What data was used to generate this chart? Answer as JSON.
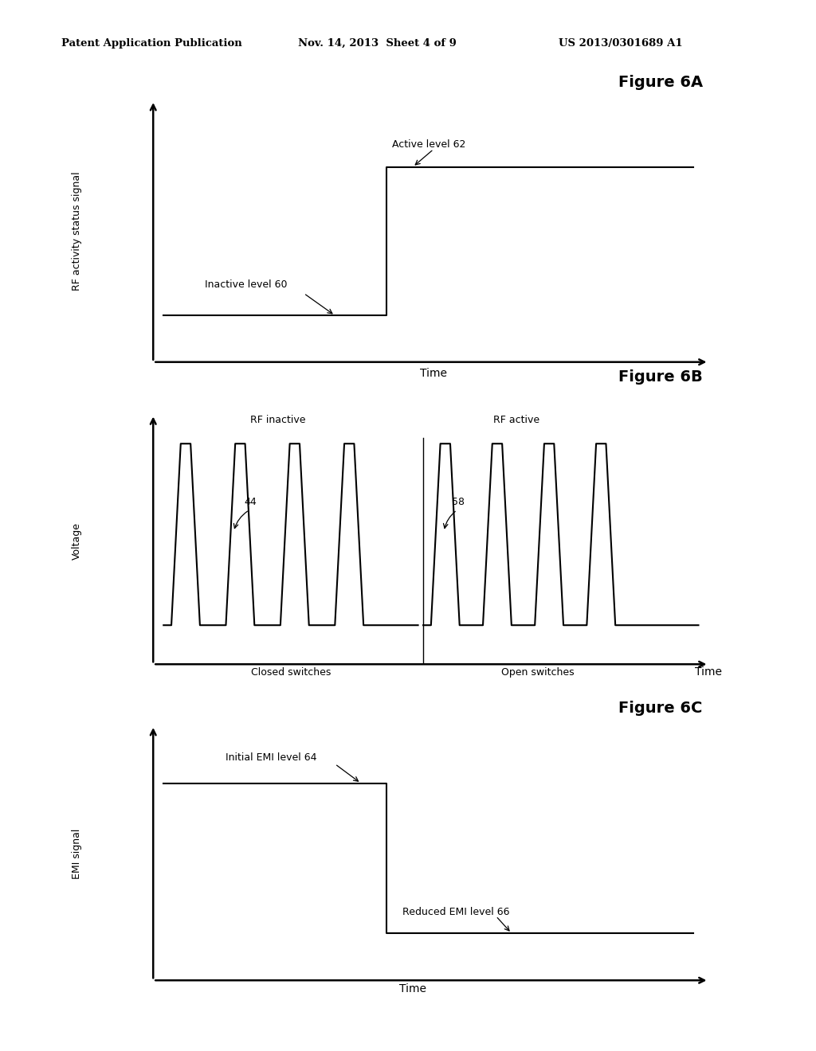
{
  "bg_color": "#ffffff",
  "text_color": "#000000",
  "line_color": "#000000",
  "header_left": "Patent Application Publication",
  "header_center": "Nov. 14, 2013  Sheet 4 of 9",
  "header_right": "US 2013/0301689 A1",
  "fig6A_title": "Figure 6A",
  "fig6A_ylabel": "RF activity status signal",
  "fig6A_xlabel": "Time",
  "fig6A_active_label": "Active level 62",
  "fig6A_inactive_label": "Inactive level 60",
  "fig6B_title": "Figure 6B",
  "fig6B_ylabel": "Voltage",
  "fig6B_xlabel": "Time",
  "fig6B_rf_inactive_label": "RF inactive",
  "fig6B_rf_active_label": "RF active",
  "fig6B_closed_label": "Closed switches",
  "fig6B_open_label": "Open switches",
  "fig6B_label44": "44",
  "fig6B_label58": "58",
  "fig6C_title": "Figure 6C",
  "fig6C_ylabel": "EMI signal",
  "fig6C_xlabel": "Time",
  "fig6C_initial_label": "Initial EMI level 64",
  "fig6C_reduced_label": "Reduced EMI level 66"
}
